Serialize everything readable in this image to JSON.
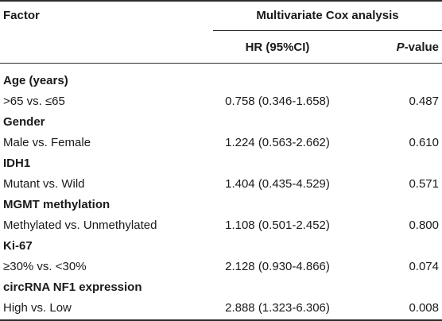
{
  "header": {
    "factor": "Factor",
    "group": "Multivariate Cox analysis",
    "hr": "HR (95%CI)",
    "p_italic": "P",
    "p_rest": "-value"
  },
  "rows": [
    {
      "category": "Age (years)",
      "comparison": ">65 vs. ≤65",
      "hr": "0.758 (0.346-1.658)",
      "p": "0.487"
    },
    {
      "category": "Gender",
      "comparison": "Male vs. Female",
      "hr": "1.224 (0.563-2.662)",
      "p": "0.610"
    },
    {
      "category": "IDH1",
      "comparison": "Mutant vs. Wild",
      "hr": "1.404 (0.435-4.529)",
      "p": "0.571"
    },
    {
      "category": "MGMT methylation",
      "comparison": "Methylated vs. Unmethylated",
      "hr": "1.108 (0.501-2.452)",
      "p": "0.800"
    },
    {
      "category": "Ki-67",
      "comparison": "≥30% vs. <30%",
      "hr": "2.128 (0.930-4.866)",
      "p": "0.074"
    },
    {
      "category": "circRNA NF1 expression",
      "comparison": "High vs. Low",
      "hr": "2.888 (1.323-6.306)",
      "p": "0.008"
    }
  ]
}
